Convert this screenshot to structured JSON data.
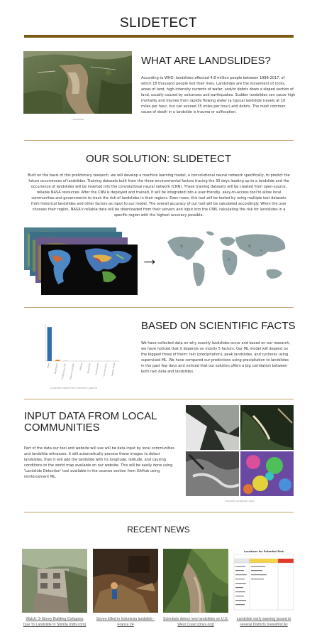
{
  "site": {
    "title": "SLIDETECT"
  },
  "landslides": {
    "heading": "WHAT ARE LANDSLIDES?",
    "caption": "Landslide",
    "body": "According to WHO, landslides affected 4.8 million people between 1998-2017, of which 18 thousand people lost their lives. Landslides are the movement of rocks, areas of land, high-intensity currents of water, and/or debris down a sloped section of land, usually caused by volcanoes and earthquakes. Sudden landslides can cause high mortality and injuries from rapidly flowing water (a typical landslide travels at 10 miles per hour, but can exceed 35 miles per hour) and debris. The most common cause of death in a landslide is trauma or suffocation."
  },
  "solution": {
    "heading": "OUR SOLUTION: SLIDETECT",
    "body": "Built on the basis of this preliminary research, we will develop a machine learning model, a convolutional neural network specifically, to predict the future occurrences of landslides. Training datasets built from the three environmental factors tracing the 30 days leading up to a landslide and the occurrence of landslides will be inserted into the convolutional neural network (CNN). These training datasets will be created from open-source, reliable NASA resources. After the CNN is deployed and trained, it will be integrated into a user-friendly, easy-to-access tool to allow local communities and governments to track the risk of landslides in their regions. Even more, this tool will be tested by using multiple test datasets from historical landslides and other factors as input to our model. The overall accuracy of our tool will be calculated accordingly. When the user chooses their region, NASA's reliable data will be downloaded from their servers and input into the CNN, calculating the risk for landslides in a specific region with the highest accuracy possible.",
    "arrow_glyph": "→"
  },
  "facts": {
    "heading": "BASED ON SCIENTIFIC FACTS",
    "caption": "Collected data from research papers",
    "body": "We have collected data on why exactly landslides occur and based on our research, we have noticed that it depends on mostly 5 factors. Our ML model will depend on the biggest three of them: rain (precipitation), peak landslides, and cyclones using supervised ML. We have compared our predictions using precipitation to landslides in the past few days and noticed that our solution offers a big correlation between both rain data and landslides."
  },
  "chart_data": {
    "type": "bar",
    "categories": [
      "Rain",
      "Downpour",
      "Continuous rain",
      "Tropical cyclone",
      "Mining",
      "Snowmelt",
      "Earthquake",
      "Construction",
      "Freeze thaw"
    ],
    "values": [
      5980,
      250,
      120,
      60,
      45,
      40,
      30,
      25,
      20
    ],
    "ylim": [
      0,
      6500
    ],
    "colors": [
      "#2f6fb0",
      "#f08a24",
      "#cccccc",
      "#cccccc",
      "#cccccc",
      "#cccccc",
      "#cccccc",
      "#cccccc",
      "#cccccc"
    ]
  },
  "community": {
    "heading": "INPUT DATA FROM LOCAL COMMUNITIES",
    "caption": "Sample Landslide data",
    "body": "Part of the data our tool and website will use will be data input by local communities and landslide witnesses. It will automatically process these images to detect landslides, then it will add the landslide with its longitude, latitude, and causing conditions to the world map available on our website. This will be easily done using 'Landslide Detection' tool available in the sources section from GitHub using reinforcement ML."
  },
  "news": {
    "heading": "RECENT NEWS",
    "items": [
      {
        "label": "Watch: 3-Storey Building Collapses Due To Landslide In Shimla (ndtv.com)"
      },
      {
        "label": "Seven killed in Indonesia landslide - France 24"
      },
      {
        "label": "Scientists detect new landslides on U.S. West Coast (phys.org)"
      },
      {
        "label": "Landslide early warning issued to several Districts (newsfirst.lk)"
      }
    ],
    "table_title": "Locations for Potential Risk"
  }
}
